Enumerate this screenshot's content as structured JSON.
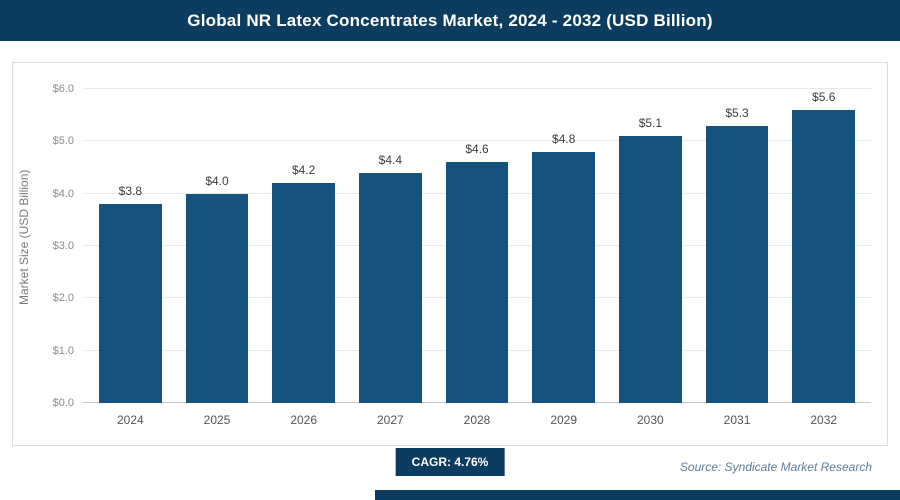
{
  "header": {
    "title": "Global NR Latex Concentrates Market, 2024 - 2032 (USD Billion)"
  },
  "chart_data": {
    "type": "bar",
    "title": "Global NR Latex Concentrates Market, 2024 - 2032 (USD Billion)",
    "categories": [
      "2024",
      "2025",
      "2026",
      "2027",
      "2028",
      "2029",
      "2030",
      "2031",
      "2032"
    ],
    "values": [
      3.8,
      4.0,
      4.2,
      4.4,
      4.6,
      4.8,
      5.1,
      5.3,
      5.6
    ],
    "value_labels": [
      "$3.8",
      "$4.0",
      "$4.2",
      "$4.4",
      "$4.6",
      "$4.8",
      "$5.1",
      "$5.3",
      "$5.6"
    ],
    "xlabel": "",
    "ylabel": "Market Size (USD Billion)",
    "ylim": [
      0,
      6
    ],
    "ytick_labels": [
      "$0.0",
      "$1.0",
      "$2.0",
      "$3.0",
      "$4.0",
      "$5.0",
      "$6.0"
    ],
    "grid": true,
    "legend": "none",
    "bar_color": "#15537e"
  },
  "footer": {
    "cagr_label": "CAGR: 4.76%",
    "source": "Source: Syndicate Market Research"
  },
  "colors": {
    "header_bg": "#0d3c61",
    "bar": "#15537e",
    "badge_bg": "#0d3c61",
    "source_text": "#5f7d99"
  }
}
